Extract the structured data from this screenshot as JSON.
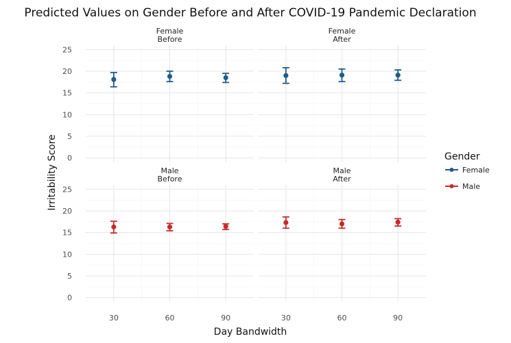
{
  "chart_data": {
    "type": "scatter",
    "subtype": "point-with-errorbars, faceted 2x2",
    "title": "Predicted Values on Gender Before and After COVID-19 Pandemic Declaration",
    "xlabel": "Day Bandwidth",
    "ylabel": "Irritability Score",
    "x_ticks": [
      "30",
      "60",
      "90"
    ],
    "y_ticks": [
      "0",
      "5",
      "10",
      "15",
      "20",
      "25"
    ],
    "ylim": [
      -1,
      26
    ],
    "grid": true,
    "legend": {
      "title": "Gender",
      "position": "right",
      "entries": [
        {
          "label": "Female",
          "color": "#1f5b8a"
        },
        {
          "label": "Male",
          "color": "#c62a2a"
        }
      ]
    },
    "panels": [
      {
        "strip": [
          "Female",
          "Before"
        ],
        "gender": "Female",
        "color": "#1f5b8a",
        "points": [
          {
            "x": 30,
            "y": 18.1,
            "lo": 16.4,
            "hi": 19.7
          },
          {
            "x": 60,
            "y": 18.8,
            "lo": 17.6,
            "hi": 20.0
          },
          {
            "x": 90,
            "y": 18.5,
            "lo": 17.4,
            "hi": 19.5
          }
        ]
      },
      {
        "strip": [
          "Female",
          "After"
        ],
        "gender": "Female",
        "color": "#1f5b8a",
        "points": [
          {
            "x": 30,
            "y": 19.0,
            "lo": 17.2,
            "hi": 20.8
          },
          {
            "x": 60,
            "y": 19.1,
            "lo": 17.6,
            "hi": 20.5
          },
          {
            "x": 90,
            "y": 19.1,
            "lo": 17.9,
            "hi": 20.3
          }
        ]
      },
      {
        "strip": [
          "Male",
          "Before"
        ],
        "gender": "Male",
        "color": "#c62a2a",
        "points": [
          {
            "x": 30,
            "y": 16.3,
            "lo": 14.9,
            "hi": 17.6
          },
          {
            "x": 60,
            "y": 16.3,
            "lo": 15.4,
            "hi": 17.1
          },
          {
            "x": 90,
            "y": 16.4,
            "lo": 15.7,
            "hi": 17.0
          }
        ]
      },
      {
        "strip": [
          "Male",
          "After"
        ],
        "gender": "Male",
        "color": "#c62a2a",
        "points": [
          {
            "x": 30,
            "y": 17.3,
            "lo": 16.0,
            "hi": 18.6
          },
          {
            "x": 60,
            "y": 17.0,
            "lo": 16.0,
            "hi": 18.0
          },
          {
            "x": 90,
            "y": 17.4,
            "lo": 16.5,
            "hi": 18.2
          }
        ]
      }
    ]
  }
}
